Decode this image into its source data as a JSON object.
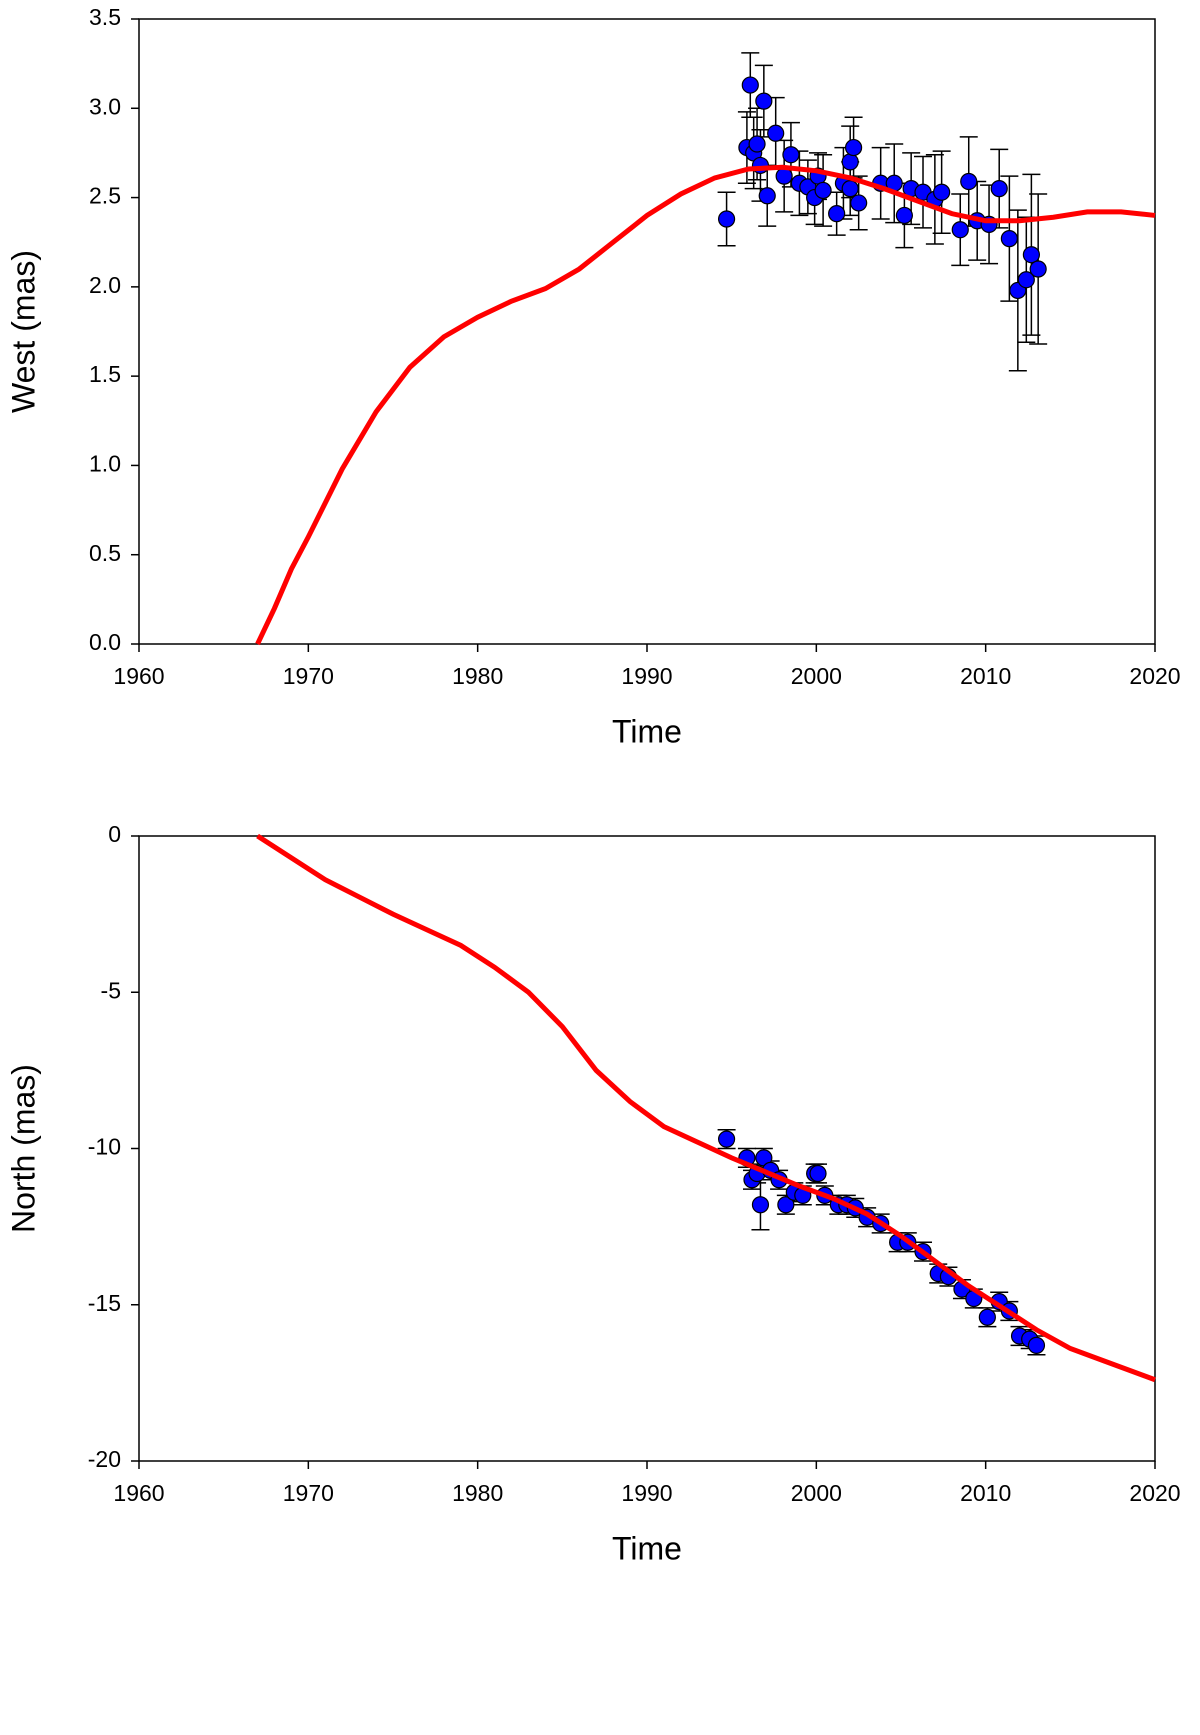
{
  "chart_data": [
    {
      "type": "scatter",
      "xlabel": "Time",
      "ylabel": "West (mas)",
      "xlim": [
        1960,
        2020
      ],
      "xticks": [
        1960,
        1970,
        1980,
        1990,
        2000,
        2010,
        2020
      ],
      "ylim": [
        0,
        3.5
      ],
      "yticks": [
        {
          "value": 0,
          "label": "0.0"
        },
        {
          "value": 0.5,
          "label": "0.5"
        },
        {
          "value": 1,
          "label": "1.0"
        },
        {
          "value": 1.5,
          "label": "1.5"
        },
        {
          "value": 2,
          "label": "2.0"
        },
        {
          "value": 2.5,
          "label": "2.5"
        },
        {
          "value": 3,
          "label": "3.0"
        },
        {
          "value": 3.5,
          "label": "3.5"
        }
      ],
      "series": [
        {
          "type": "line",
          "color": "#ff0000",
          "x": [
            1967,
            1968,
            1969,
            1970,
            1972,
            1974,
            1976,
            1978,
            1980,
            1982,
            1984,
            1986,
            1988,
            1990,
            1992,
            1994,
            1996,
            1998,
            2000,
            2002,
            2004,
            2006,
            2008,
            2010,
            2012,
            2014,
            2016,
            2018,
            2020
          ],
          "values": [
            0,
            0.2,
            0.42,
            0.6,
            0.98,
            1.3,
            1.55,
            1.72,
            1.83,
            1.92,
            1.99,
            2.1,
            2.25,
            2.4,
            2.52,
            2.61,
            2.66,
            2.67,
            2.65,
            2.61,
            2.55,
            2.48,
            2.41,
            2.37,
            2.37,
            2.39,
            2.42,
            2.42,
            2.4
          ]
        },
        {
          "type": "scatter",
          "color": "#0000ff",
          "x": [
            1994.7,
            1995.9,
            1996.1,
            1996.3,
            1996.5,
            1996.7,
            1996.9,
            1997.1,
            1997.6,
            1998.1,
            1998.5,
            1999.0,
            1999.5,
            1999.9,
            2000.1,
            2000.4,
            2001.2,
            2001.6,
            2002.0,
            2002.2,
            2002.0,
            2002.5,
            2003.8,
            2004.6,
            2005.2,
            2005.6,
            2006.3,
            2007.0,
            2007.4,
            2008.5,
            2009.0,
            2009.5,
            2010.2,
            2010.8,
            2011.4,
            2011.9,
            2012.4,
            2012.7,
            2013.1
          ],
          "values": [
            2.38,
            2.78,
            3.13,
            2.75,
            2.8,
            2.68,
            3.04,
            2.51,
            2.86,
            2.62,
            2.74,
            2.58,
            2.56,
            2.5,
            2.62,
            2.54,
            2.41,
            2.58,
            2.7,
            2.78,
            2.55,
            2.47,
            2.58,
            2.58,
            2.4,
            2.55,
            2.53,
            2.49,
            2.53,
            2.32,
            2.59,
            2.37,
            2.35,
            2.55,
            2.27,
            1.98,
            2.04,
            2.18,
            2.1
          ],
          "errors": [
            0.15,
            0.2,
            0.18,
            0.2,
            0.2,
            0.2,
            0.2,
            0.17,
            0.2,
            0.2,
            0.18,
            0.18,
            0.15,
            0.15,
            0.13,
            0.2,
            0.12,
            0.2,
            0.2,
            0.17,
            0.15,
            0.15,
            0.2,
            0.22,
            0.18,
            0.2,
            0.2,
            0.25,
            0.23,
            0.2,
            0.25,
            0.22,
            0.22,
            0.22,
            0.35,
            0.45,
            0.35,
            0.45,
            0.42
          ]
        }
      ]
    },
    {
      "type": "scatter",
      "xlabel": "Time",
      "ylabel": "North (mas)",
      "xlim": [
        1960,
        2020
      ],
      "xticks": [
        1960,
        1970,
        1980,
        1990,
        2000,
        2010,
        2020
      ],
      "ylim": [
        -20,
        0
      ],
      "yticks": [
        -20,
        -15,
        -10,
        -5,
        0
      ],
      "series": [
        {
          "type": "line",
          "color": "#ff0000",
          "x": [
            1967,
            1969,
            1971,
            1973,
            1975,
            1977,
            1979,
            1981,
            1983,
            1985,
            1987,
            1989,
            1991,
            1993,
            1995,
            1997,
            1999,
            2001,
            2003,
            2005,
            2007,
            2009,
            2011,
            2013,
            2015,
            2017,
            2020
          ],
          "values": [
            0,
            -0.7,
            -1.4,
            -1.95,
            -2.5,
            -3.0,
            -3.5,
            -4.2,
            -5.0,
            -6.1,
            -7.5,
            -8.5,
            -9.3,
            -9.8,
            -10.3,
            -10.75,
            -11.2,
            -11.6,
            -12.1,
            -12.8,
            -13.6,
            -14.4,
            -15.1,
            -15.8,
            -16.4,
            -16.8,
            -17.4
          ]
        },
        {
          "type": "scatter",
          "color": "#0000ff",
          "x": [
            1994.7,
            1995.9,
            1996.2,
            1996.5,
            1996.7,
            1996.9,
            1997.3,
            1997.8,
            1998.2,
            1998.7,
            1999.2,
            1999.9,
            2000.1,
            2000.5,
            2001.3,
            2001.8,
            2002.3,
            2003.0,
            2003.8,
            2004.8,
            2005.4,
            2006.3,
            2007.2,
            2007.8,
            2008.6,
            2009.3,
            2010.1,
            2010.8,
            2011.4,
            2012.0,
            2012.6,
            2013.0
          ],
          "values": [
            -9.7,
            -10.3,
            -11.0,
            -10.8,
            -11.8,
            -10.3,
            -10.7,
            -11.0,
            -11.8,
            -11.4,
            -11.5,
            -10.8,
            -10.8,
            -11.5,
            -11.8,
            -11.8,
            -11.9,
            -12.2,
            -12.4,
            -13.0,
            -13.0,
            -13.3,
            -14.0,
            -14.1,
            -14.5,
            -14.8,
            -15.4,
            -14.9,
            -15.2,
            -16.0,
            -16.1,
            -16.3
          ],
          "errors": [
            0.3,
            0.3,
            0.3,
            0.3,
            0.8,
            0.3,
            0.3,
            0.3,
            0.3,
            0.3,
            0.3,
            0.3,
            0.3,
            0.3,
            0.3,
            0.3,
            0.3,
            0.3,
            0.3,
            0.3,
            0.3,
            0.3,
            0.3,
            0.3,
            0.3,
            0.3,
            0.3,
            0.3,
            0.3,
            0.3,
            0.3,
            0.3
          ]
        }
      ]
    }
  ]
}
